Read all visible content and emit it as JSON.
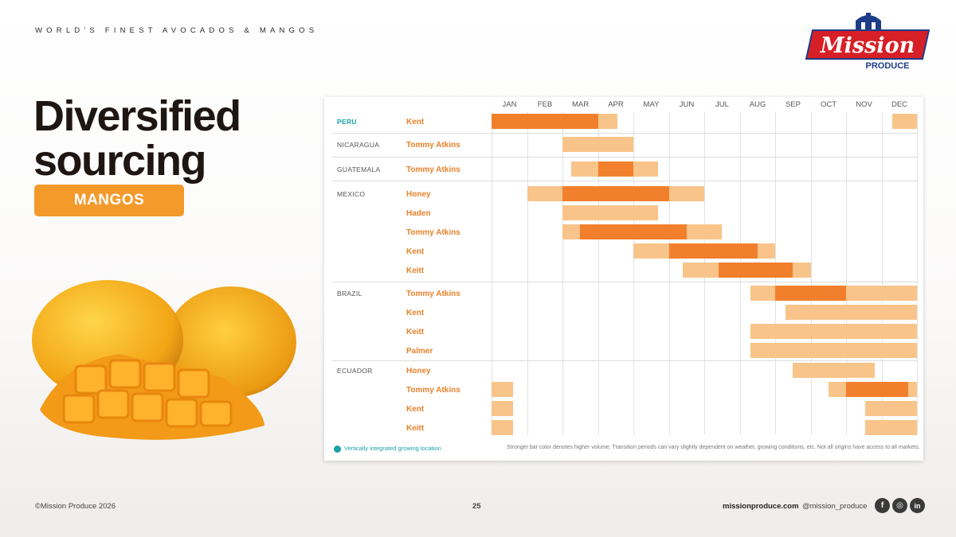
{
  "header": {
    "tagline": "WORLD'S FINEST AVOCADOS & MANGOS"
  },
  "logo": {
    "wordmark": "Mission",
    "sub": "PRODUCE"
  },
  "title": {
    "line1": "Diversified",
    "line2": "sourcing"
  },
  "badge": {
    "label": "MANGOS"
  },
  "chart_data": {
    "type": "gantt",
    "months": [
      "JAN",
      "FEB",
      "MAR",
      "APR",
      "MAY",
      "JUN",
      "JUL",
      "AUG",
      "SEP",
      "OCT",
      "NOV",
      "DEC"
    ],
    "origins": [
      {
        "name": "PERU",
        "vertically_integrated": true,
        "varieties": [
          {
            "name": "Kent",
            "segments": [
              [
                0,
                3,
                "dark"
              ],
              [
                3,
                3.55,
                "light"
              ],
              [
                11.3,
                12,
                "light"
              ]
            ]
          }
        ]
      },
      {
        "name": "NICARAGUA",
        "vertically_integrated": false,
        "varieties": [
          {
            "name": "Tommy Atkins",
            "segments": [
              [
                2,
                4,
                "light"
              ]
            ]
          }
        ]
      },
      {
        "name": "GUATEMALA",
        "vertically_integrated": false,
        "varieties": [
          {
            "name": "Tommy Atkins",
            "segments": [
              [
                2.25,
                3,
                "light"
              ],
              [
                3,
                4,
                "dark"
              ],
              [
                4,
                4.7,
                "light"
              ]
            ]
          }
        ]
      },
      {
        "name": "MEXICO",
        "vertically_integrated": false,
        "varieties": [
          {
            "name": "Honey",
            "segments": [
              [
                1,
                2,
                "light"
              ],
              [
                2,
                5,
                "dark"
              ],
              [
                5,
                6,
                "light"
              ]
            ]
          },
          {
            "name": "Haden",
            "segments": [
              [
                2,
                4.7,
                "light"
              ]
            ]
          },
          {
            "name": "Tommy Atkins",
            "segments": [
              [
                2,
                2.5,
                "light"
              ],
              [
                2.5,
                5.5,
                "dark"
              ],
              [
                5.5,
                6.5,
                "light"
              ]
            ]
          },
          {
            "name": "Kent",
            "segments": [
              [
                4,
                5,
                "light"
              ],
              [
                5,
                7.5,
                "dark"
              ],
              [
                7.5,
                8,
                "light"
              ]
            ]
          },
          {
            "name": "Keitt",
            "segments": [
              [
                5.4,
                6.4,
                "light"
              ],
              [
                6.4,
                8.5,
                "dark"
              ],
              [
                8.5,
                9,
                "light"
              ]
            ]
          }
        ]
      },
      {
        "name": "BRAZIL",
        "vertically_integrated": false,
        "varieties": [
          {
            "name": "Tommy Atkins",
            "segments": [
              [
                7.3,
                8,
                "light"
              ],
              [
                8,
                10,
                "dark"
              ],
              [
                10,
                12,
                "light"
              ]
            ]
          },
          {
            "name": "Kent",
            "segments": [
              [
                8.3,
                12,
                "light"
              ]
            ]
          },
          {
            "name": "Keitt",
            "segments": [
              [
                7.3,
                12,
                "light"
              ]
            ]
          },
          {
            "name": "Palmer",
            "segments": [
              [
                7.3,
                12,
                "light"
              ]
            ]
          }
        ]
      },
      {
        "name": "ECUADOR",
        "vertically_integrated": false,
        "varieties": [
          {
            "name": "Honey",
            "segments": [
              [
                8.5,
                10.8,
                "light"
              ]
            ]
          },
          {
            "name": "Tommy Atkins",
            "segments": [
              [
                0,
                0.6,
                "light"
              ],
              [
                9.5,
                10,
                "light"
              ],
              [
                10,
                11.75,
                "dark"
              ],
              [
                11.75,
                12,
                "light"
              ]
            ]
          },
          {
            "name": "Kent",
            "segments": [
              [
                0,
                0.6,
                "light"
              ],
              [
                10.55,
                12,
                "light"
              ]
            ]
          },
          {
            "name": "Keitt",
            "segments": [
              [
                0,
                0.6,
                "light"
              ],
              [
                10.55,
                12,
                "light"
              ]
            ]
          }
        ]
      }
    ],
    "legend": "Vertically integrated growing location",
    "note": "Stronger bar color denotes higher volume. Transition periods can vary slightly dependent on weather, growing conditions, etc. Not all origins have access to all markets.",
    "colors": {
      "light": "#f9c48a",
      "dark": "#f27f2c",
      "integrated": "#1aa1a5"
    }
  },
  "footer": {
    "copyright": "©Mission Produce 2026",
    "page": "25",
    "website": "missionproduce.com",
    "handle": "@mission_produce",
    "social": [
      {
        "icon": "facebook-icon",
        "glyph": "f"
      },
      {
        "icon": "instagram-icon",
        "glyph": "◎"
      },
      {
        "icon": "linkedin-icon",
        "glyph": "in"
      }
    ]
  }
}
